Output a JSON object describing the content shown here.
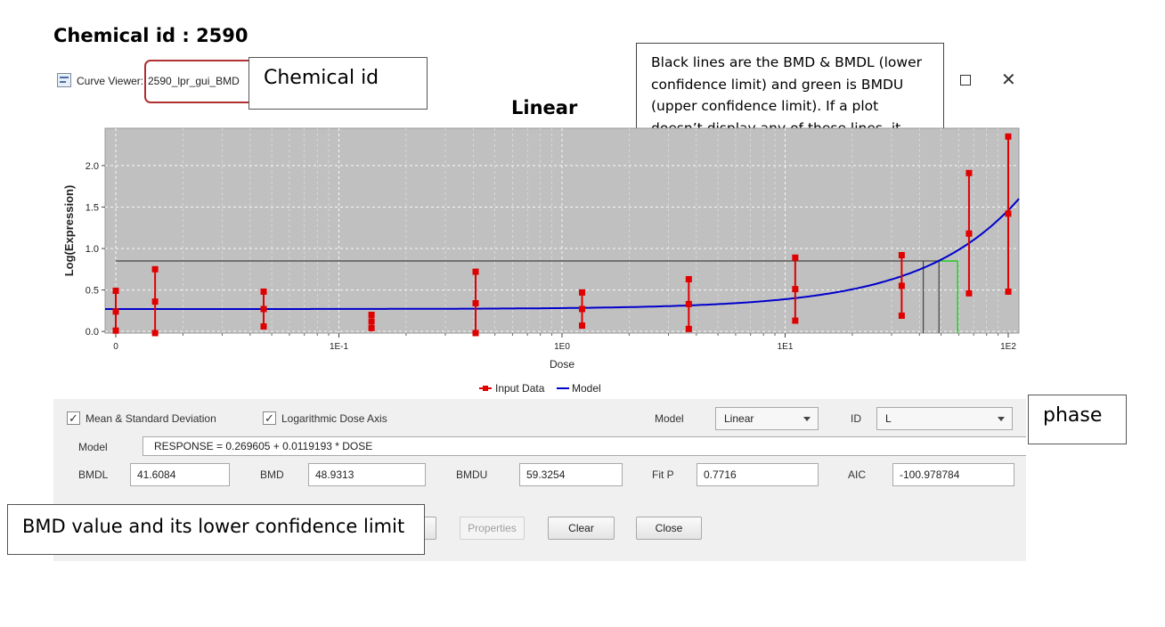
{
  "heading": "Chemical id : 2590",
  "window": {
    "title_prefix": "Curve Viewer:",
    "title_id": "2590_lpr_gui_BMD",
    "icon": "bmd-app-icon",
    "maximize_icon": "maximize-icon",
    "close_icon": "close-icon",
    "close_glyph": "✕"
  },
  "callouts": {
    "chemical_id": "Chemical id",
    "bmd_lines": "Black lines are the BMD & BMDL (lower confidence limit) and green is BMDU (upper confidence limit). If a plot doesn’t display any of these lines, it means they were outside the range of tested doses for that chemical",
    "phase": "phase",
    "bmd_value": "BMD value and its lower confidence limit"
  },
  "chart_data": {
    "type": "scatter",
    "title": "Linear",
    "xlabel": "Dose",
    "ylabel": "Log(Expression)",
    "x_scale": "log",
    "x_tick_labels": [
      "0",
      "1E-1",
      "1E0",
      "1E1",
      "1E2"
    ],
    "y_tick_labels": [
      "0.0",
      "0.5",
      "1.0",
      "1.5",
      "2.0"
    ],
    "ylim": [
      -0.02,
      2.45
    ],
    "grid": true,
    "legend_position": "bottom",
    "series": [
      {
        "name": "Input Data",
        "color": "#e00000",
        "points": [
          {
            "x": 0.01,
            "mean": 0.24,
            "low": 0.01,
            "high": 0.49
          },
          {
            "x": 0.015,
            "mean": 0.36,
            "low": -0.02,
            "high": 0.75
          },
          {
            "x": 0.046,
            "mean": 0.27,
            "low": 0.06,
            "high": 0.48
          },
          {
            "x": 0.14,
            "mean": 0.12,
            "low": 0.04,
            "high": 0.2
          },
          {
            "x": 0.41,
            "mean": 0.34,
            "low": -0.02,
            "high": 0.72
          },
          {
            "x": 1.23,
            "mean": 0.27,
            "low": 0.07,
            "high": 0.47
          },
          {
            "x": 3.7,
            "mean": 0.33,
            "low": 0.03,
            "high": 0.63
          },
          {
            "x": 11.1,
            "mean": 0.51,
            "low": 0.13,
            "high": 0.89
          },
          {
            "x": 33.3,
            "mean": 0.55,
            "low": 0.19,
            "high": 0.92
          },
          {
            "x": 66.7,
            "mean": 1.18,
            "low": 0.46,
            "high": 1.91
          },
          {
            "x": 100,
            "mean": 1.42,
            "low": 0.48,
            "high": 2.35
          }
        ]
      },
      {
        "name": "Model",
        "color": "#0000cc",
        "intercept": 0.269605,
        "slope": 0.0119193
      }
    ],
    "bmr_level": 0.85,
    "bmdl": 41.6084,
    "bmd": 48.9313,
    "bmdu": 59.3254
  },
  "options": {
    "mean_sd_label": "Mean & Standard Deviation",
    "mean_sd_checked": "✓",
    "log_axis_label": "Logarithmic Dose Axis",
    "log_axis_checked": "✓",
    "model_select_label": "Model",
    "model_select_value": "Linear",
    "id_label": "ID",
    "id_value": "L"
  },
  "model": {
    "label": "Model",
    "equation": "RESPONSE = 0.269605 + 0.0119193 * DOSE"
  },
  "results": {
    "bmdl_label": "BMDL",
    "bmdl_value": "41.6084",
    "bmd_label": "BMD",
    "bmd_value": "48.9313",
    "bmdu_label": "BMDU",
    "bmdu_value": "59.3254",
    "fitp_label": "Fit P",
    "fitp_value": "0.7716",
    "aic_label": "AIC",
    "aic_value": "-100.978784"
  },
  "buttons": {
    "properties": "Properties",
    "clear": "Clear",
    "close": "Close"
  }
}
